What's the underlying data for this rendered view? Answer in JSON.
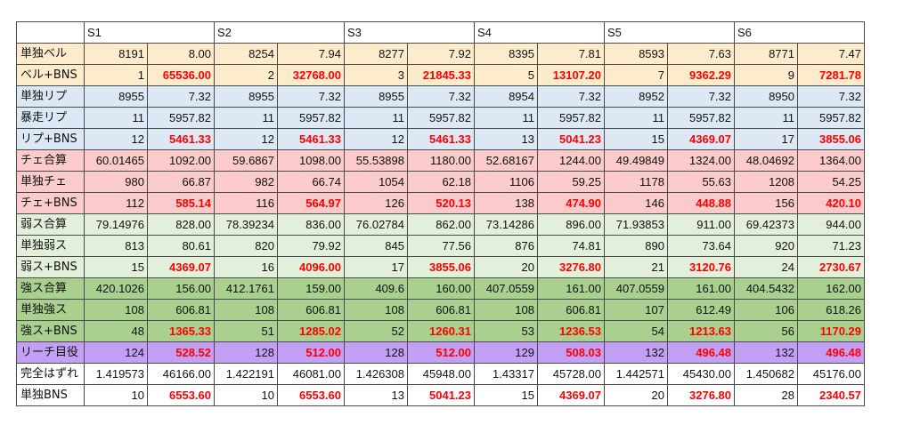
{
  "headers": [
    "",
    "S1",
    "S2",
    "S3",
    "S4",
    "S5",
    "S6"
  ],
  "colors": {
    "yellow": "#fdeccb",
    "blue": "#dce9f5",
    "pink": "#fbcaca",
    "lightgreen": "#e2efda",
    "green": "#a9d08e",
    "purple": "#c39ff6",
    "white": "#ffffff",
    "highlight_text": "#ff0000"
  },
  "rows": [
    {
      "label": "単独ベル",
      "color": "yellow",
      "cells": [
        [
          "8191",
          "8.00"
        ],
        [
          "8254",
          "7.94"
        ],
        [
          "8277",
          "7.92"
        ],
        [
          "8395",
          "7.81"
        ],
        [
          "8593",
          "7.63"
        ],
        [
          "8771",
          "7.47"
        ]
      ],
      "red": false
    },
    {
      "label": "ベル+BNS",
      "color": "yellow",
      "cells": [
        [
          "1",
          "65536.00"
        ],
        [
          "2",
          "32768.00"
        ],
        [
          "3",
          "21845.33"
        ],
        [
          "5",
          "13107.20"
        ],
        [
          "7",
          "9362.29"
        ],
        [
          "9",
          "7281.78"
        ]
      ],
      "red": true
    },
    {
      "label": "単独リプ",
      "color": "blue",
      "cells": [
        [
          "8955",
          "7.32"
        ],
        [
          "8955",
          "7.32"
        ],
        [
          "8955",
          "7.32"
        ],
        [
          "8954",
          "7.32"
        ],
        [
          "8952",
          "7.32"
        ],
        [
          "8950",
          "7.32"
        ]
      ],
      "red": false
    },
    {
      "label": "暴走リプ",
      "color": "blue",
      "cells": [
        [
          "11",
          "5957.82"
        ],
        [
          "11",
          "5957.82"
        ],
        [
          "11",
          "5957.82"
        ],
        [
          "11",
          "5957.82"
        ],
        [
          "11",
          "5957.82"
        ],
        [
          "11",
          "5957.82"
        ]
      ],
      "red": false
    },
    {
      "label": "リプ+BNS",
      "color": "blue",
      "cells": [
        [
          "12",
          "5461.33"
        ],
        [
          "12",
          "5461.33"
        ],
        [
          "12",
          "5461.33"
        ],
        [
          "13",
          "5041.23"
        ],
        [
          "15",
          "4369.07"
        ],
        [
          "17",
          "3855.06"
        ]
      ],
      "red": true
    },
    {
      "label": "チェ合算",
      "color": "pink",
      "cells": [
        [
          "60.01465",
          "1092.00"
        ],
        [
          "59.6867",
          "1098.00"
        ],
        [
          "55.53898",
          "1180.00"
        ],
        [
          "52.68167",
          "1244.00"
        ],
        [
          "49.49849",
          "1324.00"
        ],
        [
          "48.04692",
          "1364.00"
        ]
      ],
      "red": false
    },
    {
      "label": "単独チェ",
      "color": "pink",
      "cells": [
        [
          "980",
          "66.87"
        ],
        [
          "982",
          "66.74"
        ],
        [
          "1054",
          "62.18"
        ],
        [
          "1106",
          "59.25"
        ],
        [
          "1178",
          "55.63"
        ],
        [
          "1208",
          "54.25"
        ]
      ],
      "red": false
    },
    {
      "label": "チェ+BNS",
      "color": "pink",
      "cells": [
        [
          "112",
          "585.14"
        ],
        [
          "116",
          "564.97"
        ],
        [
          "126",
          "520.13"
        ],
        [
          "138",
          "474.90"
        ],
        [
          "146",
          "448.88"
        ],
        [
          "156",
          "420.10"
        ]
      ],
      "red": true
    },
    {
      "label": "弱ス合算",
      "color": "lightgreen",
      "cells": [
        [
          "79.14976",
          "828.00"
        ],
        [
          "78.39234",
          "836.00"
        ],
        [
          "76.02784",
          "862.00"
        ],
        [
          "73.14286",
          "896.00"
        ],
        [
          "71.93853",
          "911.00"
        ],
        [
          "69.42373",
          "944.00"
        ]
      ],
      "red": false
    },
    {
      "label": "単独弱ス",
      "color": "lightgreen",
      "cells": [
        [
          "813",
          "80.61"
        ],
        [
          "820",
          "79.92"
        ],
        [
          "845",
          "77.56"
        ],
        [
          "876",
          "74.81"
        ],
        [
          "890",
          "73.64"
        ],
        [
          "920",
          "71.23"
        ]
      ],
      "red": false
    },
    {
      "label": "弱ス+BNS",
      "color": "lightgreen",
      "cells": [
        [
          "15",
          "4369.07"
        ],
        [
          "16",
          "4096.00"
        ],
        [
          "17",
          "3855.06"
        ],
        [
          "20",
          "3276.80"
        ],
        [
          "21",
          "3120.76"
        ],
        [
          "24",
          "2730.67"
        ]
      ],
      "red": true
    },
    {
      "label": "強ス合算",
      "color": "green",
      "cells": [
        [
          "420.1026",
          "156.00"
        ],
        [
          "412.1761",
          "159.00"
        ],
        [
          "409.6",
          "160.00"
        ],
        [
          "407.0559",
          "161.00"
        ],
        [
          "407.0559",
          "161.00"
        ],
        [
          "404.5432",
          "162.00"
        ]
      ],
      "red": false
    },
    {
      "label": "単独強ス",
      "color": "green",
      "cells": [
        [
          "108",
          "606.81"
        ],
        [
          "108",
          "606.81"
        ],
        [
          "108",
          "606.81"
        ],
        [
          "108",
          "606.81"
        ],
        [
          "107",
          "612.49"
        ],
        [
          "106",
          "618.26"
        ]
      ],
      "red": false
    },
    {
      "label": "強ス+BNS",
      "color": "green",
      "cells": [
        [
          "48",
          "1365.33"
        ],
        [
          "51",
          "1285.02"
        ],
        [
          "52",
          "1260.31"
        ],
        [
          "53",
          "1236.53"
        ],
        [
          "54",
          "1213.63"
        ],
        [
          "56",
          "1170.29"
        ]
      ],
      "red": true
    },
    {
      "label": "リーチ目役",
      "color": "purple",
      "cells": [
        [
          "124",
          "528.52"
        ],
        [
          "128",
          "512.00"
        ],
        [
          "128",
          "512.00"
        ],
        [
          "129",
          "508.03"
        ],
        [
          "132",
          "496.48"
        ],
        [
          "132",
          "496.48"
        ]
      ],
      "red": true
    },
    {
      "label": "完全はずれ",
      "color": "white",
      "cells": [
        [
          "1.419573",
          "46166.00"
        ],
        [
          "1.422191",
          "46081.00"
        ],
        [
          "1.426308",
          "45948.00"
        ],
        [
          "1.43317",
          "45728.00"
        ],
        [
          "1.442571",
          "45430.00"
        ],
        [
          "1.450682",
          "45176.00"
        ]
      ],
      "red": false
    },
    {
      "label": "単独BNS",
      "color": "white",
      "cells": [
        [
          "10",
          "6553.60"
        ],
        [
          "10",
          "6553.60"
        ],
        [
          "13",
          "5041.23"
        ],
        [
          "15",
          "4369.07"
        ],
        [
          "20",
          "3276.80"
        ],
        [
          "28",
          "2340.57"
        ]
      ],
      "red": true
    }
  ]
}
